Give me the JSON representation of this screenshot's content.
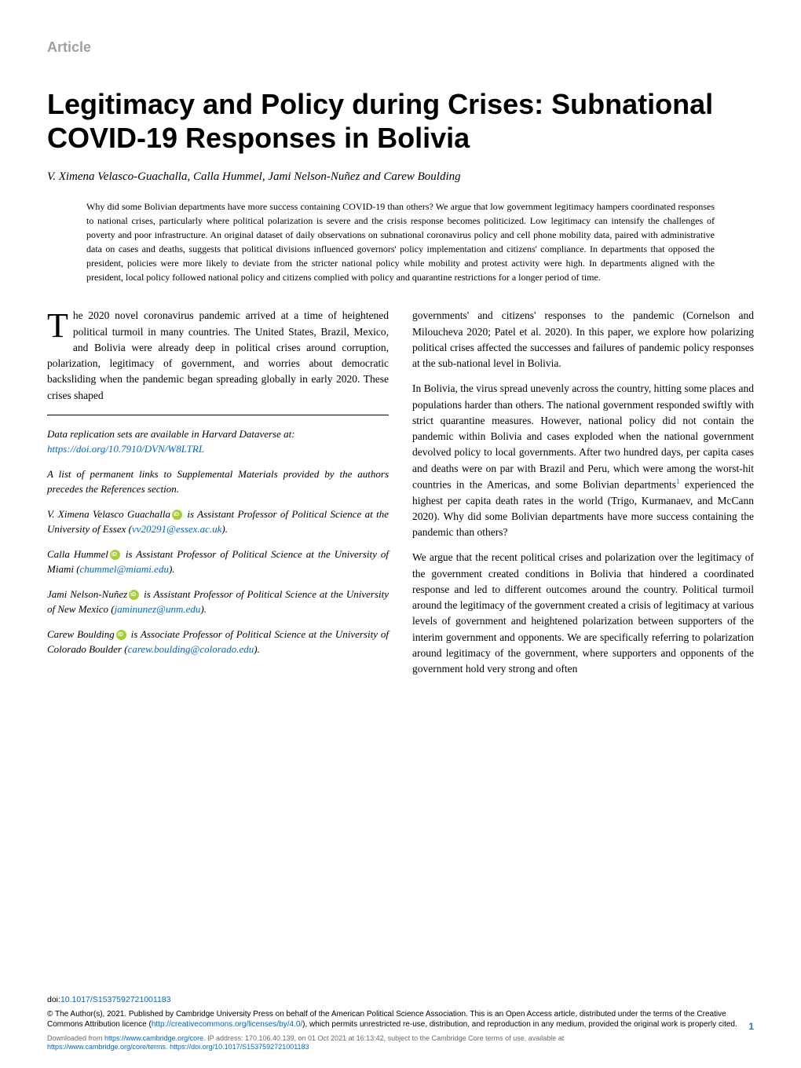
{
  "article_label": "Article",
  "title": "Legitimacy and Policy during Crises: Subnational COVID-19 Responses in Bolivia",
  "authors": "V. Ximena Velasco-Guachalla, Calla Hummel, Jami Nelson-Nuñez and Carew Boulding",
  "abstract": "Why did some Bolivian departments have more success containing COVID-19 than others? We argue that low government legitimacy hampers coordinated responses to national crises, particularly where political polarization is severe and the crisis response becomes politicized. Low legitimacy can intensify the challenges of poverty and poor infrastructure. An original dataset of daily observations on subnational coronavirus policy and cell phone mobility data, paired with administrative data on cases and deaths, suggests that political divisions influenced governors' policy implementation and citizens' compliance. In departments that opposed the president, policies were more likely to deviate from the stricter national policy while mobility and protest activity were high. In departments aligned with the president, local policy followed national policy and citizens complied with policy and quarantine restrictions for a longer period of time.",
  "left_column": {
    "intro_dropcap": "T",
    "intro_text": "he 2020 novel coronavirus pandemic arrived at a time of heightened political turmoil in many countries. The United States, Brazil, Mexico, and Bolivia were already deep in political crises around corruption, polarization, legitimacy of government, and worries about democratic backsliding when the pandemic began spreading globally in early 2020. These crises shaped",
    "data_note_prefix": "Data replication sets are available in Harvard Dataverse at:",
    "data_note_link": "https://doi.org/10.7910/DVN/W8LTRL",
    "supplemental_note": "A list of permanent links to Supplemental Materials provided by the authors precedes the References section.",
    "bio1_name": "V. Ximena Velasco Guachalla",
    "bio1_text": " is Assistant Professor of Political Science at the University of Essex (",
    "bio1_email": "vv20291@essex.ac.uk",
    "bio1_end": ").",
    "bio2_name": "Calla Hummel",
    "bio2_text": " is Assistant Professor of Political Science at the University of Miami (",
    "bio2_email": "chummel@miami.edu",
    "bio2_end": ").",
    "bio3_name": "Jami Nelson-Nuñez",
    "bio3_text": " is Assistant Professor of Political Science at the University of New Mexico (",
    "bio3_email": "jaminunez@unm.edu",
    "bio3_end": ").",
    "bio4_name": "Carew Boulding",
    "bio4_text": " is Associate Professor of Political Science at the University of Colorado Boulder (",
    "bio4_email": "carew.boulding@colorado.edu",
    "bio4_end": ")."
  },
  "right_column": {
    "para1": "governments' and citizens' responses to the pandemic (Cornelson and Miloucheva 2020; Patel et al. 2020). In this paper, we explore how polarizing political crises affected the successes and failures of pandemic policy responses at the sub-national level in Bolivia.",
    "para2a": "In Bolivia, the virus spread unevenly across the country, hitting some places and populations harder than others. The national government responded swiftly with strict quarantine measures. However, national policy did not contain the pandemic within Bolivia and cases exploded when the national government devolved policy to local governments. After two hundred days, per capita cases and deaths were on par with Brazil and Peru, which were among the worst-hit countries in the Americas, and some Bolivian departments",
    "para2_sup": "1",
    "para2b": " experienced the highest per capita death rates in the world (Trigo, Kurmanaev, and McCann 2020). Why did some Bolivian departments have more success containing the pandemic than others?",
    "para3": "We argue that the recent political crises and polarization over the legitimacy of the government created conditions in Bolivia that hindered a coordinated response and led to different outcomes around the country. Political turmoil around the legitimacy of the government created a crisis of legitimacy at various levels of government and heightened polarization between supporters of the interim government and opponents. We are specifically referring to polarization around legitimacy of the government, where supporters and opponents of the government hold very strong and often"
  },
  "footer": {
    "doi_prefix": "doi:",
    "doi_link": "10.1017/S1537592721001183",
    "copyright_text": "© The Author(s), 2021. Published by Cambridge University Press on behalf of the American Political Science Association. This is an Open Access article, distributed under the terms of the Creative Commons Attribution licence (",
    "cc_link": "http://creativecommons.org/licenses/by/4.0/",
    "copyright_suffix": "), which permits unrestricted re-use, distribution, and reproduction in any medium, provided the original work is properly cited.",
    "download_prefix": "Downloaded from ",
    "download_link1": "https://www.cambridge.org/core",
    "download_mid": ". IP address: 170.106.40.139, on 01 Oct 2021 at 16:13:42, subject to the Cambridge Core terms of use, available at",
    "download_link2": "https://www.cambridge.org/core/terms",
    "download_sep": ". ",
    "download_link3": "https://doi.org/10.1017/S1537592721001183",
    "page_num": "1"
  },
  "colors": {
    "link": "#0066cc",
    "label_gray": "#a0a0a0",
    "page_num_blue": "#1b7fb5",
    "download_gray": "#6a6a6a",
    "orcid_green": "#a6ce39"
  },
  "typography": {
    "title_fontsize": 36,
    "body_fontsize": 13.5,
    "abstract_fontsize": 12,
    "footer_fontsize": 10
  }
}
